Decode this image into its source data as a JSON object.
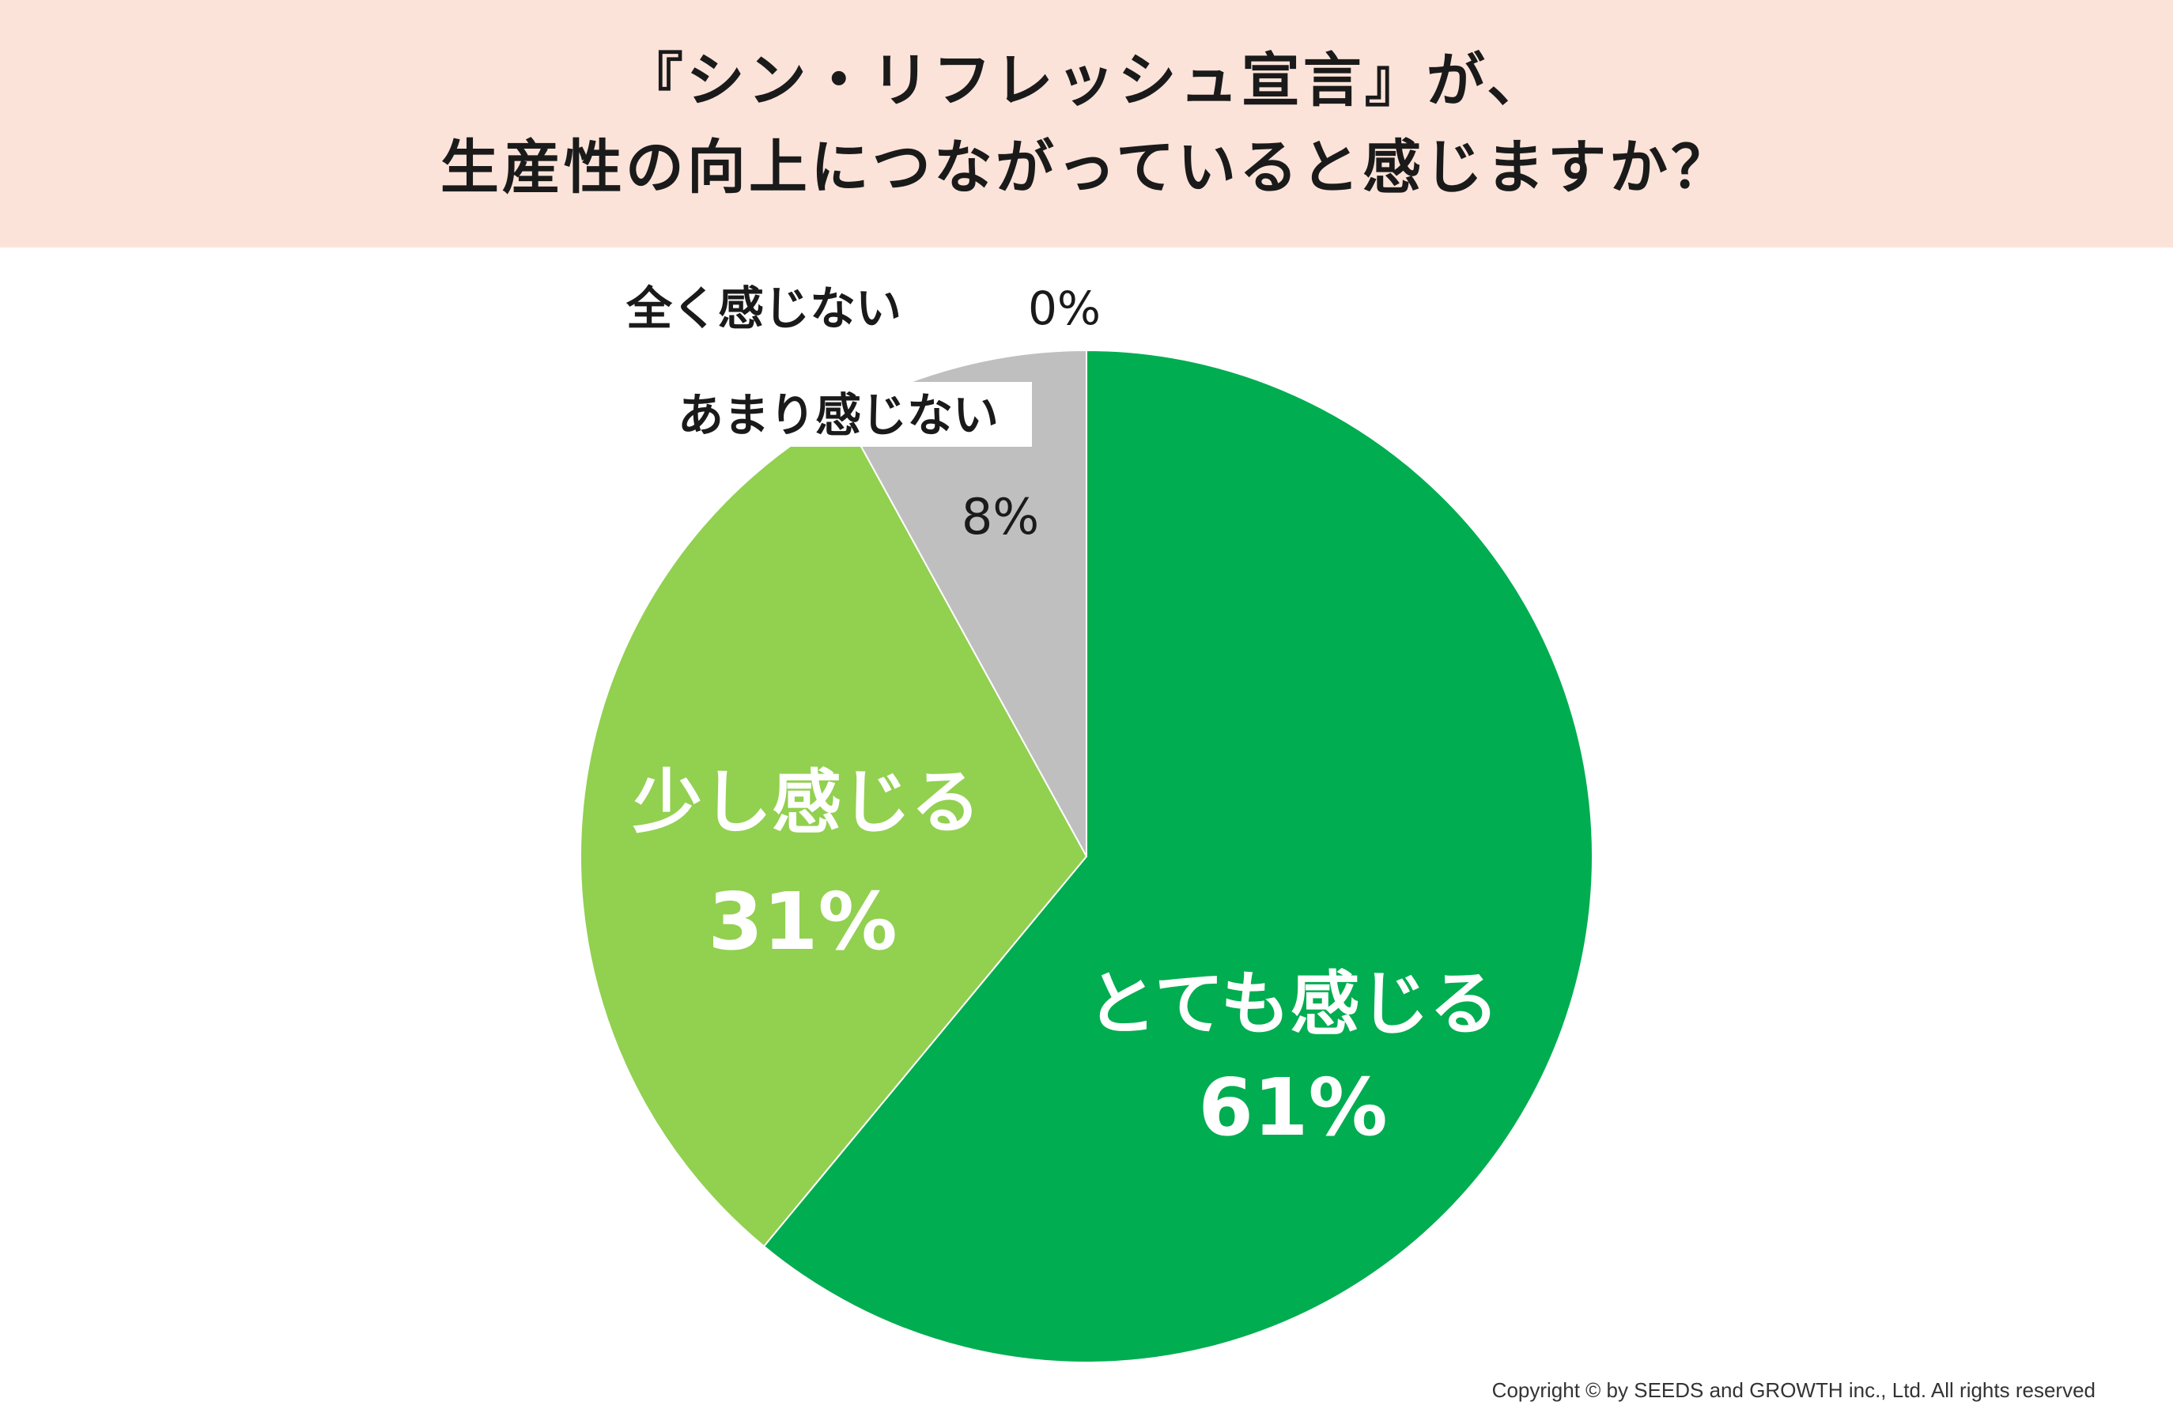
{
  "colors": {
    "title_background": "#fbe3d9",
    "very_much": "#00ad50",
    "somewhat": "#92d050",
    "not_much": "#bfbfbf",
    "label_light": "#ffffff",
    "label_dark": "#1a1a1a"
  },
  "title": {
    "line1": "『シン・リフレッシュ宣言』が、",
    "line2": "生産性の向上につながっていると感じますか？"
  },
  "chart_data": {
    "type": "pie",
    "categories": [
      "とても感じる",
      "少し感じる",
      "あまり感じない",
      "全く感じない"
    ],
    "values": [
      61,
      31,
      8,
      0
    ],
    "value_labels": [
      "61%",
      "31%",
      "8%",
      "0%"
    ],
    "unit": "%",
    "start_angle": "12 o'clock",
    "direction": "clockwise"
  },
  "labels": {
    "very_much": {
      "name": "とても感じる",
      "pct": "61%"
    },
    "somewhat": {
      "name": "少し感じる",
      "pct": "31%"
    },
    "not_much": {
      "name": "あまり感じない",
      "pct": "8%"
    },
    "not_at_all": {
      "name": "全く感じない",
      "pct": "0%"
    }
  },
  "copyright": "Copyright © by SEEDS and GROWTH inc., Ltd. All rights reserved"
}
